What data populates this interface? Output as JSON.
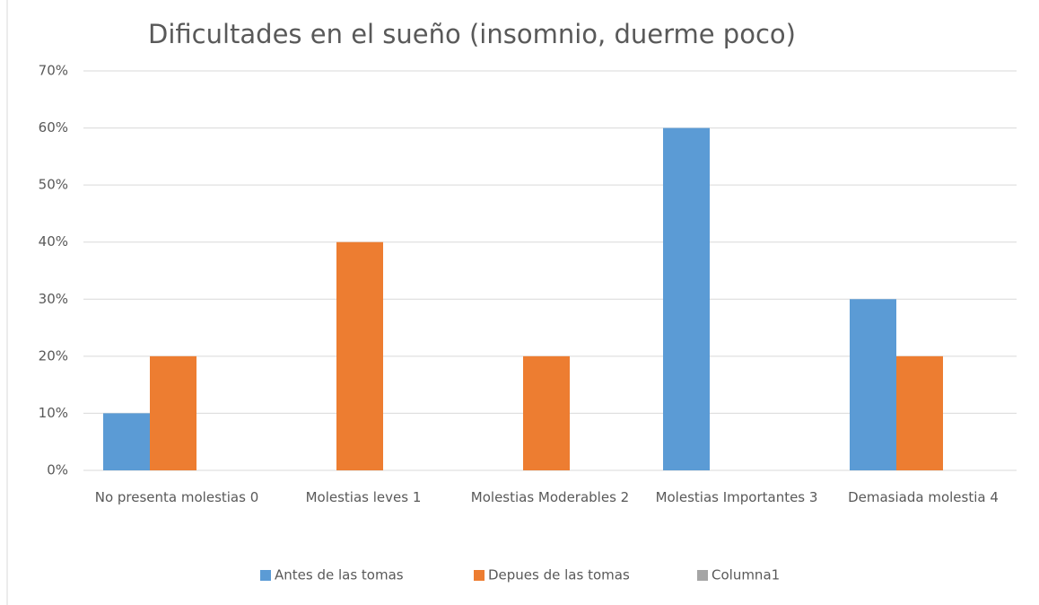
{
  "chart_data": {
    "type": "bar",
    "title": "Dificultades en el sueño (insomnio, duerme poco)",
    "categories": [
      "No presenta molestias 0",
      "Molestias leves 1",
      "Molestias Moderables 2",
      "Molestias Importantes 3",
      "Demasiada molestia 4"
    ],
    "series": [
      {
        "name": "Antes de las tomas",
        "color": "#5b9bd5",
        "values": [
          10,
          0,
          0,
          60,
          30
        ]
      },
      {
        "name": "Depues de las tomas",
        "color": "#ed7d31",
        "values": [
          20,
          40,
          20,
          0,
          20
        ]
      },
      {
        "name": "Columna1",
        "color": "#a5a5a5",
        "values": [
          null,
          null,
          null,
          null,
          null
        ]
      }
    ],
    "ylim": [
      0,
      70
    ],
    "yticks": [
      {
        "value": 0,
        "label": "0%"
      },
      {
        "value": 10,
        "label": "10%"
      },
      {
        "value": 20,
        "label": "20%"
      },
      {
        "value": 30,
        "label": "30%"
      },
      {
        "value": 40,
        "label": "40%"
      },
      {
        "value": 50,
        "label": "50%"
      },
      {
        "value": 60,
        "label": "60%"
      },
      {
        "value": 70,
        "label": "70%"
      }
    ],
    "grid": true,
    "legend": "bottom"
  }
}
